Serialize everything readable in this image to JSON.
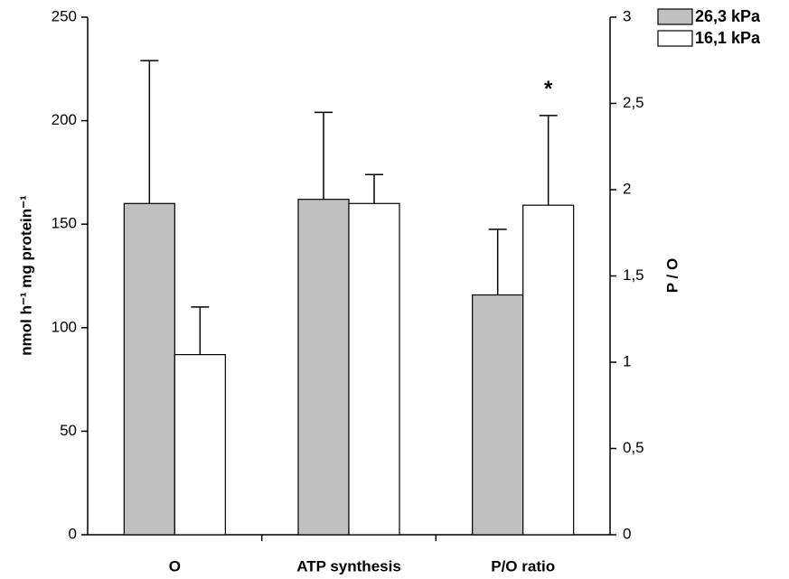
{
  "chart_data": {
    "type": "bar",
    "ylabel": "nmol h⁻¹ mg protein⁻¹",
    "y2label": "P / O",
    "categories": [
      "O",
      "ATP synthesis",
      "P/O ratio"
    ],
    "category_axis": [
      "y",
      "y",
      "y2"
    ],
    "series": [
      {
        "name": "26,3 kPa",
        "color": "#c0c0c0",
        "values": [
          160,
          162,
          1.39
        ],
        "errors": [
          69,
          42,
          0.38
        ]
      },
      {
        "name": "16,1 kPa",
        "color": "#ffffff",
        "values": [
          87,
          160,
          1.91
        ],
        "errors": [
          23,
          14,
          0.52
        ]
      }
    ],
    "ylim": [
      0,
      250
    ],
    "yticks": [
      0,
      50,
      100,
      150,
      200,
      250
    ],
    "y2lim": [
      0,
      3
    ],
    "y2ticks": [
      0,
      {
        "value": 0.5,
        "label": "0,5"
      },
      1,
      {
        "value": 1.5,
        "label": "1,5"
      },
      2,
      {
        "value": 2.5,
        "label": "2,5"
      },
      3
    ],
    "annotation": {
      "text": "*",
      "category": 2,
      "series": 1
    },
    "legend": "top-right"
  }
}
